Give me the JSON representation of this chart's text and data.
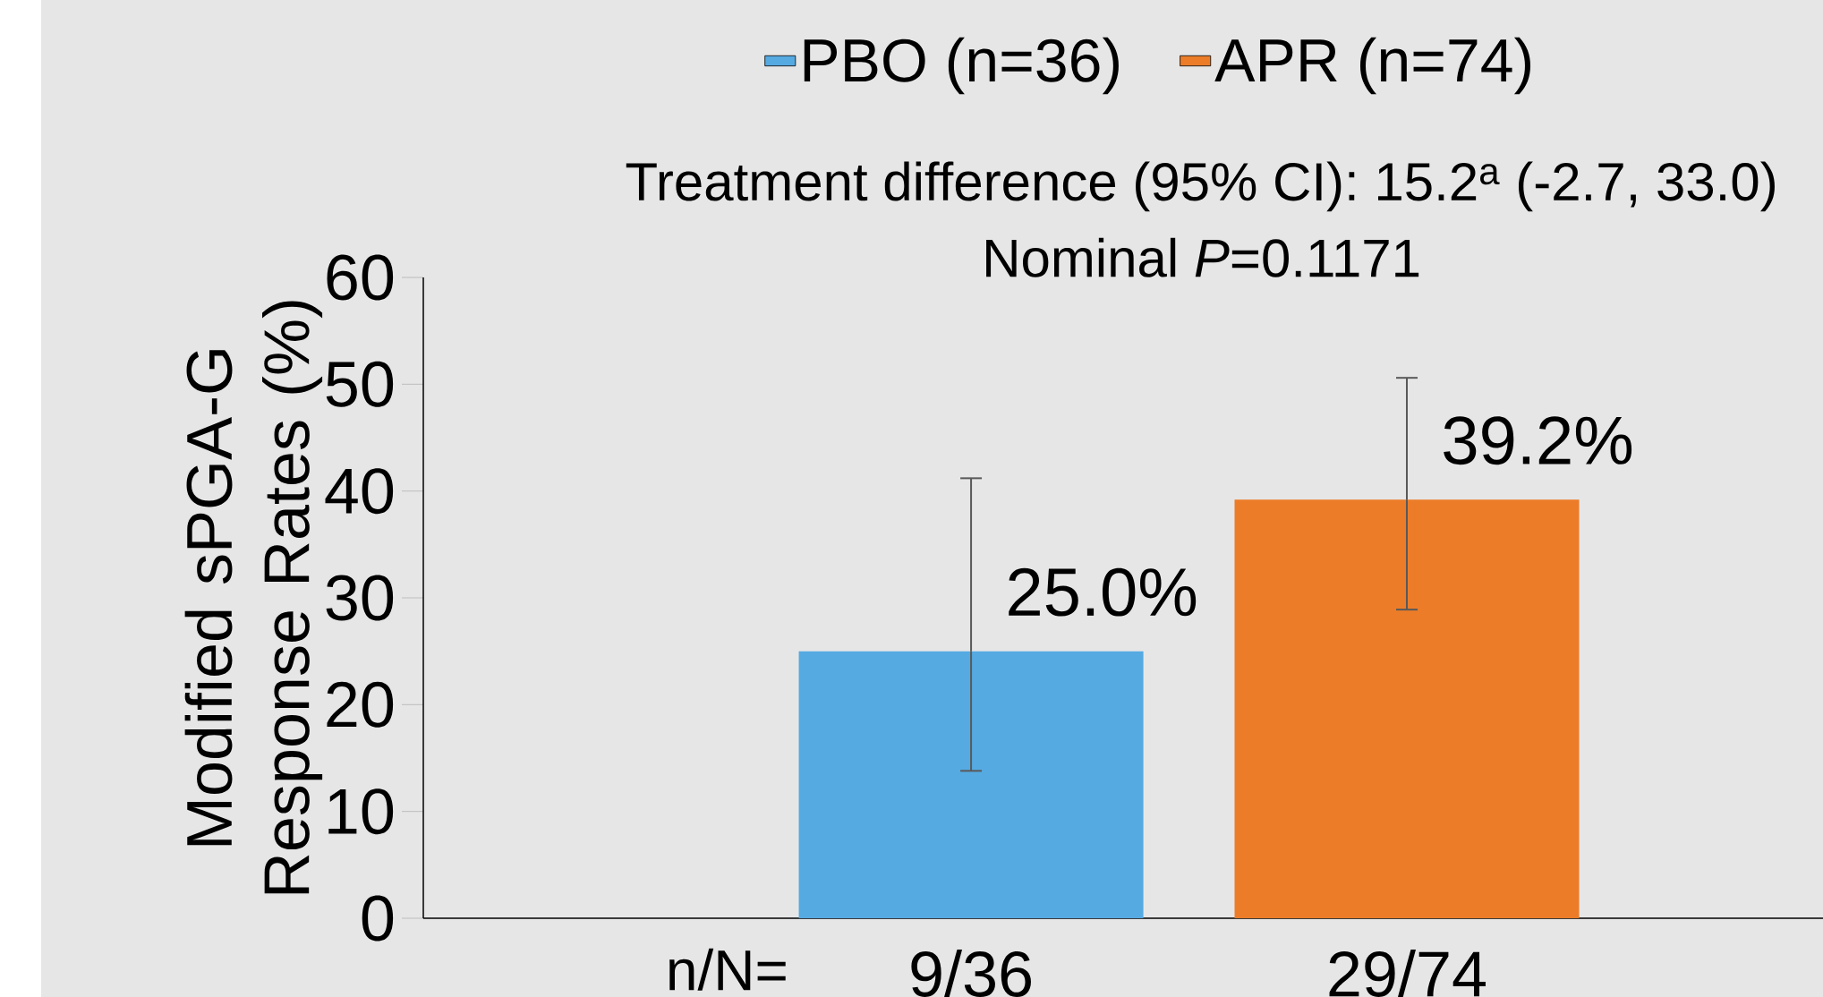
{
  "chart_data": {
    "type": "bar",
    "ylabel": "Modified sPGA-G Response Rates (%)",
    "categories": [
      "9/36",
      "29/74"
    ],
    "series": [
      {
        "name": "PBO (n=36)",
        "color": "#55aae2",
        "values": [
          25.0,
          null
        ],
        "errors": [
          [
            13.8,
            41.2
          ],
          null
        ],
        "value_labels": [
          "25.0%",
          null
        ]
      },
      {
        "name": "APR (n=74)",
        "color": "#ec7c28",
        "values": [
          null,
          39.2
        ],
        "errors": [
          null,
          [
            28.9,
            50.6
          ]
        ],
        "value_labels": [
          null,
          "39.2%"
        ]
      }
    ],
    "annotations": [
      "Treatment difference (95% CI): 15.2$^{a}$ (-2.7, 33.0)",
      "Nominal *P*=0.1171",
      "n/N="
    ],
    "ylim": [
      0,
      60
    ],
    "yticks": [
      0,
      10,
      20,
      30,
      40,
      50,
      60
    ],
    "legend": "top"
  }
}
